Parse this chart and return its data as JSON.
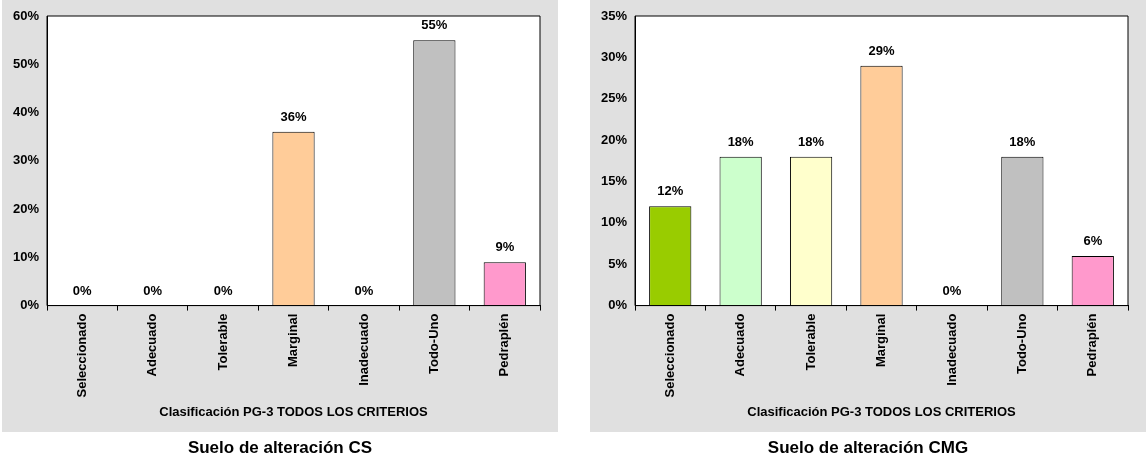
{
  "chart_data": [
    {
      "type": "bar",
      "title": "Suelo de alteración CS",
      "xlabel": "Clasificación PG-3 TODOS LOS CRITERIOS",
      "categories": [
        "Seleccionado",
        "Adecuado",
        "Tolerable",
        "Marginal",
        "Inadecuado",
        "Todo-Uno",
        "Pedraplén"
      ],
      "values": [
        0,
        0,
        0,
        36,
        0,
        55,
        9
      ],
      "colors": [
        "#99cc00",
        "#ccffcc",
        "#ffffcc",
        "#ffcc99",
        "#ff6600",
        "#c0c0c0",
        "#ff99cc"
      ],
      "ylim": [
        0,
        60
      ],
      "yticks": [
        {
          "value": 0,
          "label": "0%"
        },
        {
          "value": 10,
          "label": "10%"
        },
        {
          "value": 20,
          "label": "20%"
        },
        {
          "value": 30,
          "label": "30%"
        },
        {
          "value": 40,
          "label": "40%"
        },
        {
          "value": 50,
          "label": "50%"
        },
        {
          "value": 60,
          "label": "60%"
        }
      ],
      "value_labels": [
        "0%",
        "0%",
        "0%",
        "36%",
        "0%",
        "55%",
        "9%"
      ],
      "grid": false,
      "legend": false
    },
    {
      "type": "bar",
      "title": "Suelo de alteración CMG",
      "xlabel": "Clasificación PG-3 TODOS LOS CRITERIOS",
      "categories": [
        "Seleccionado",
        "Adecuado",
        "Tolerable",
        "Marginal",
        "Inadecuado",
        "Todo-Uno",
        "Pedraplén"
      ],
      "values": [
        12,
        18,
        18,
        29,
        0,
        18,
        6
      ],
      "colors": [
        "#99cc00",
        "#ccffcc",
        "#ffffcc",
        "#ffcc99",
        "#ff6600",
        "#c0c0c0",
        "#ff99cc"
      ],
      "ylim": [
        0,
        35
      ],
      "yticks": [
        {
          "value": 0,
          "label": "0%"
        },
        {
          "value": 5,
          "label": "5%"
        },
        {
          "value": 10,
          "label": "10%"
        },
        {
          "value": 15,
          "label": "15%"
        },
        {
          "value": 20,
          "label": "20%"
        },
        {
          "value": 25,
          "label": "25%"
        },
        {
          "value": 30,
          "label": "30%"
        },
        {
          "value": 35,
          "label": "35%"
        }
      ],
      "value_labels": [
        "12%",
        "18%",
        "18%",
        "29%",
        "0%",
        "18%",
        "6%"
      ],
      "grid": false,
      "legend": false
    }
  ]
}
